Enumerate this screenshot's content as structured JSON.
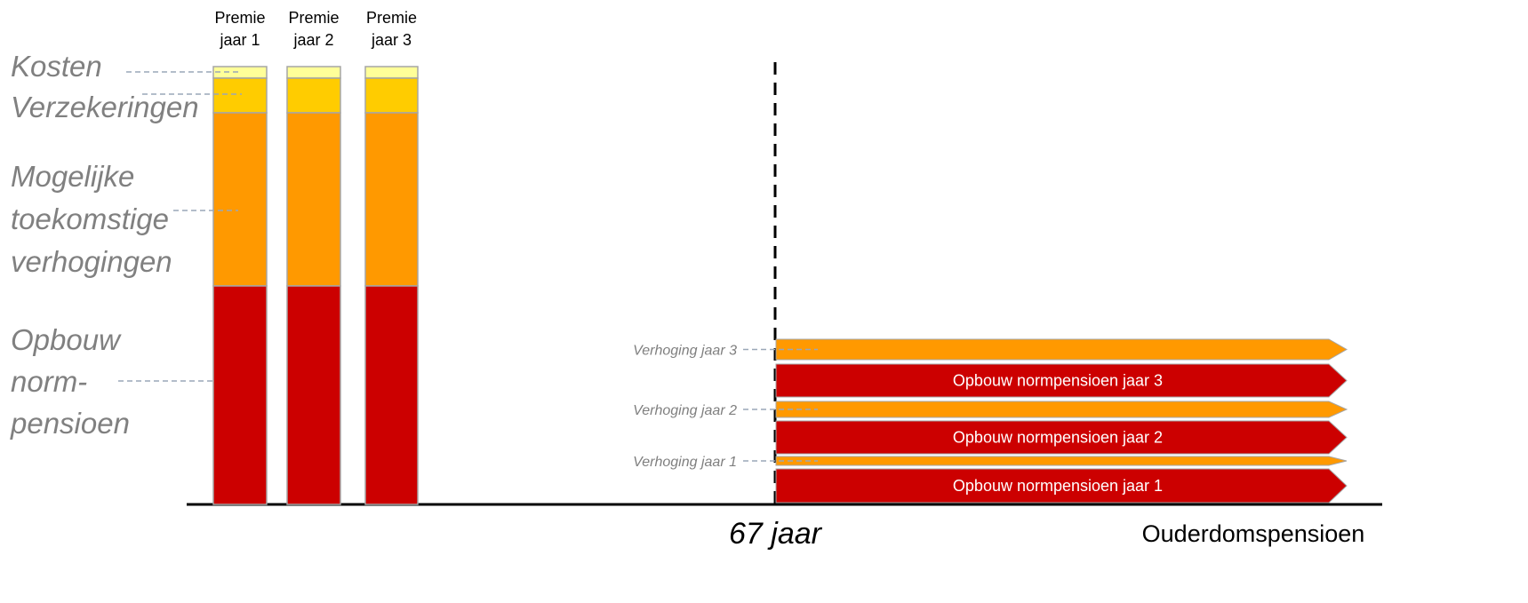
{
  "columns": [
    {
      "lines": [
        "Premie",
        "jaar 1"
      ]
    },
    {
      "lines": [
        "Premie",
        "jaar 2"
      ]
    },
    {
      "lines": [
        "Premie",
        "jaar 3"
      ]
    }
  ],
  "legend": [
    {
      "lines": [
        "Kosten"
      ]
    },
    {
      "lines": [
        "Verzekeringen"
      ]
    },
    {
      "lines": [
        "Mogelijke",
        "toekomstige",
        "verhogingen"
      ]
    },
    {
      "lines": [
        "Opbouw",
        "norm-",
        "pensioen"
      ]
    }
  ],
  "bars": [
    {
      "verhoging": "Verhoging jaar 3",
      "opbouw": "Opbouw normpensioen jaar 3"
    },
    {
      "verhoging": "Verhoging jaar 2",
      "opbouw": "Opbouw normpensioen jaar 2"
    },
    {
      "verhoging": "Verhoging jaar 1",
      "opbouw": "Opbouw normpensioen jaar 1"
    }
  ],
  "age_marker": "67 jaar",
  "axis_label": "Ouderdomspensioen"
}
